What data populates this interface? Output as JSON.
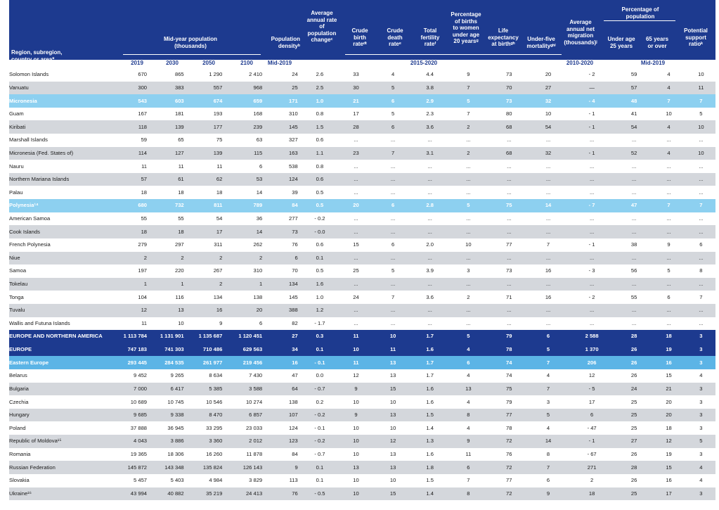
{
  "header": {
    "region": "Region, subregion,\ncountry or area*",
    "midyear": "Mid-year population\n(thousands)",
    "density": "Population\ndensityᵇ",
    "growth": "Average\nannual rate\nof\npopulation\nchangeᶜ",
    "cbr": "Crude\nbirth\nrateᵈᵗ",
    "cdr": "Crude\ndeath\nrateᵉ",
    "tfr": "Total\nfertility\nrateᶠ",
    "births_young": "Percentage\nof births\nto women\nunder age\n20 yearsᵍ",
    "life": "Life\nexpectancy\nat birthᵍʰ",
    "u5": "Under-five\nmortalityᵍʰⁱ",
    "migration": "Average\nannual net\nmigration\n(thousands)ʲ",
    "pct_group": "Percentage of\npopulation",
    "under25": "Under age\n25 years",
    "over65": "65 years\nor over",
    "support": "Potential\nsupport\nratioᵏ",
    "years": {
      "y2019": "2019",
      "y2030": "2030",
      "y2050": "2050",
      "y2100": "2100",
      "mid2019a": "Mid-2019",
      "p2015": "2015-2020",
      "p2010": "2010-2020",
      "mid2019b": "Mid-2019"
    }
  },
  "rows": [
    {
      "type": "country",
      "name": "Solomon Islands",
      "v": [
        "670",
        "865",
        "1 290",
        "2 410",
        "24",
        "2.6",
        "33",
        "4",
        "4.4",
        "9",
        "73",
        "20",
        "- 2",
        "59",
        "4",
        "10"
      ]
    },
    {
      "type": "alt",
      "name": "Vanuatu",
      "v": [
        "300",
        "383",
        "557",
        "968",
        "25",
        "2.5",
        "30",
        "5",
        "3.8",
        "7",
        "70",
        "27",
        "—",
        "57",
        "4",
        "11"
      ]
    },
    {
      "type": "sub",
      "name": "Micronesia",
      "v": [
        "543",
        "603",
        "674",
        "659",
        "171",
        "1.0",
        "21",
        "6",
        "2.9",
        "5",
        "73",
        "32",
        "- 4",
        "48",
        "7",
        "7"
      ]
    },
    {
      "type": "country",
      "name": "Guam",
      "v": [
        "167",
        "181",
        "193",
        "168",
        "310",
        "0.8",
        "17",
        "5",
        "2.3",
        "7",
        "80",
        "10",
        "- 1",
        "41",
        "10",
        "5"
      ]
    },
    {
      "type": "alt",
      "name": "Kiribati",
      "v": [
        "118",
        "139",
        "177",
        "239",
        "145",
        "1.5",
        "28",
        "6",
        "3.6",
        "2",
        "68",
        "54",
        "- 1",
        "54",
        "4",
        "10"
      ]
    },
    {
      "type": "country",
      "name": "Marshall Islands",
      "v": [
        "59",
        "65",
        "75",
        "63",
        "327",
        "0.6",
        "...",
        "...",
        "...",
        "...",
        "...",
        "...",
        "...",
        "...",
        "...",
        "..."
      ]
    },
    {
      "type": "alt",
      "name": "Micronesia (Fed. States of)",
      "v": [
        "114",
        "127",
        "139",
        "115",
        "163",
        "1.1",
        "23",
        "7",
        "3.1",
        "2",
        "68",
        "32",
        "- 1",
        "52",
        "4",
        "10"
      ]
    },
    {
      "type": "country",
      "name": "Nauru",
      "v": [
        "11",
        "11",
        "11",
        "6",
        "538",
        "0.8",
        "...",
        "...",
        "...",
        "...",
        "...",
        "...",
        "...",
        "...",
        "...",
        "..."
      ]
    },
    {
      "type": "alt",
      "name": "Northern Mariana Islands",
      "v": [
        "57",
        "61",
        "62",
        "53",
        "124",
        "0.6",
        "...",
        "...",
        "...",
        "...",
        "...",
        "...",
        "...",
        "...",
        "...",
        "..."
      ]
    },
    {
      "type": "country",
      "name": "Palau",
      "v": [
        "18",
        "18",
        "18",
        "14",
        "39",
        "0.5",
        "...",
        "...",
        "...",
        "...",
        "...",
        "...",
        "...",
        "...",
        "...",
        "..."
      ]
    },
    {
      "type": "sub",
      "name": "Polynesia¹⁴",
      "v": [
        "680",
        "732",
        "811",
        "789",
        "84",
        "0.5",
        "20",
        "6",
        "2.8",
        "5",
        "75",
        "14",
        "- 7",
        "47",
        "7",
        "7"
      ]
    },
    {
      "type": "country",
      "name": "American Samoa",
      "v": [
        "55",
        "55",
        "54",
        "36",
        "277",
        "- 0.2",
        "...",
        "...",
        "...",
        "...",
        "...",
        "...",
        "...",
        "...",
        "...",
        "..."
      ]
    },
    {
      "type": "alt",
      "name": "Cook Islands",
      "v": [
        "18",
        "18",
        "17",
        "14",
        "73",
        "- 0.0",
        "...",
        "...",
        "...",
        "...",
        "...",
        "...",
        "...",
        "...",
        "...",
        "..."
      ]
    },
    {
      "type": "country",
      "name": "French Polynesia",
      "v": [
        "279",
        "297",
        "311",
        "262",
        "76",
        "0.6",
        "15",
        "6",
        "2.0",
        "10",
        "77",
        "7",
        "- 1",
        "38",
        "9",
        "6"
      ]
    },
    {
      "type": "alt",
      "name": "Niue",
      "v": [
        "2",
        "2",
        "2",
        "2",
        "6",
        "0.1",
        "...",
        "...",
        "...",
        "...",
        "...",
        "...",
        "...",
        "...",
        "...",
        "..."
      ]
    },
    {
      "type": "country",
      "name": "Samoa",
      "v": [
        "197",
        "220",
        "267",
        "310",
        "70",
        "0.5",
        "25",
        "5",
        "3.9",
        "3",
        "73",
        "16",
        "- 3",
        "56",
        "5",
        "8"
      ]
    },
    {
      "type": "alt",
      "name": "Tokelau",
      "v": [
        "1",
        "1",
        "2",
        "1",
        "134",
        "1.6",
        "...",
        "...",
        "...",
        "...",
        "...",
        "...",
        "...",
        "...",
        "...",
        "..."
      ]
    },
    {
      "type": "country",
      "name": "Tonga",
      "v": [
        "104",
        "116",
        "134",
        "138",
        "145",
        "1.0",
        "24",
        "7",
        "3.6",
        "2",
        "71",
        "16",
        "- 2",
        "55",
        "6",
        "7"
      ]
    },
    {
      "type": "alt",
      "name": "Tuvalu",
      "v": [
        "12",
        "13",
        "16",
        "20",
        "388",
        "1.2",
        "...",
        "...",
        "...",
        "...",
        "...",
        "...",
        "...",
        "...",
        "...",
        "..."
      ]
    },
    {
      "type": "country",
      "name": "Wallis and Futuna Islands",
      "v": [
        "11",
        "10",
        "9",
        "6",
        "82",
        "- 1.7",
        "...",
        "...",
        "...",
        "...",
        "...",
        "...",
        "...",
        "...",
        "...",
        "..."
      ]
    },
    {
      "type": "regtop",
      "name": "EUROPE AND NORTHERN AMERICA",
      "v": [
        "1 113 784",
        "1 131 901",
        "1 135 687",
        "1 120 451",
        "27",
        "0.3",
        "11",
        "10",
        "1.7",
        "5",
        "79",
        "6",
        "2 588",
        "28",
        "18",
        "3"
      ]
    },
    {
      "type": "major",
      "name": "EUROPE",
      "v": [
        "747 183",
        "741 303",
        "710 486",
        "629 563",
        "34",
        "0.1",
        "10",
        "11",
        "1.6",
        "4",
        "78",
        "5",
        "1 370",
        "26",
        "19",
        "3"
      ]
    },
    {
      "type": "sub2",
      "name": "Eastern Europe",
      "v": [
        "293 445",
        "284 535",
        "261 977",
        "219 456",
        "16",
        "- 0.1",
        "11",
        "13",
        "1.7",
        "6",
        "74",
        "7",
        "206",
        "26",
        "16",
        "3"
      ]
    },
    {
      "type": "country",
      "name": "Belarus",
      "v": [
        "9 452",
        "9 265",
        "8 634",
        "7 430",
        "47",
        "0.0",
        "12",
        "13",
        "1.7",
        "4",
        "74",
        "4",
        "12",
        "26",
        "15",
        "4"
      ]
    },
    {
      "type": "alt",
      "name": "Bulgaria",
      "v": [
        "7 000",
        "6 417",
        "5 385",
        "3 588",
        "64",
        "- 0.7",
        "9",
        "15",
        "1.6",
        "13",
        "75",
        "7",
        "- 5",
        "24",
        "21",
        "3"
      ]
    },
    {
      "type": "country",
      "name": "Czechia",
      "v": [
        "10 689",
        "10 745",
        "10 546",
        "10 274",
        "138",
        "0.2",
        "10",
        "10",
        "1.6",
        "4",
        "79",
        "3",
        "17",
        "25",
        "20",
        "3"
      ]
    },
    {
      "type": "alt",
      "name": "Hungary",
      "v": [
        "9 685",
        "9 338",
        "8 470",
        "6 857",
        "107",
        "- 0.2",
        "9",
        "13",
        "1.5",
        "8",
        "77",
        "5",
        "6",
        "25",
        "20",
        "3"
      ]
    },
    {
      "type": "country",
      "name": "Poland",
      "v": [
        "37 888",
        "36 945",
        "33 295",
        "23 033",
        "124",
        "- 0.1",
        "10",
        "10",
        "1.4",
        "4",
        "78",
        "4",
        "- 47",
        "25",
        "18",
        "3"
      ]
    },
    {
      "type": "alt",
      "name": "Republic of Moldova¹⁵",
      "v": [
        "4 043",
        "3 886",
        "3 360",
        "2 012",
        "123",
        "- 0.2",
        "10",
        "12",
        "1.3",
        "9",
        "72",
        "14",
        "- 1",
        "27",
        "12",
        "5"
      ]
    },
    {
      "type": "country",
      "name": "Romania",
      "v": [
        "19 365",
        "18 306",
        "16 260",
        "11 878",
        "84",
        "- 0.7",
        "10",
        "13",
        "1.6",
        "11",
        "76",
        "8",
        "- 67",
        "26",
        "19",
        "3"
      ]
    },
    {
      "type": "alt",
      "name": "Russian Federation",
      "v": [
        "145 872",
        "143 348",
        "135 824",
        "126 143",
        "9",
        "0.1",
        "13",
        "13",
        "1.8",
        "6",
        "72",
        "7",
        "271",
        "28",
        "15",
        "4"
      ]
    },
    {
      "type": "country",
      "name": "Slovakia",
      "v": [
        "5 457",
        "5 403",
        "4 984",
        "3 829",
        "113",
        "0.1",
        "10",
        "10",
        "1.5",
        "7",
        "77",
        "6",
        "2",
        "26",
        "16",
        "4"
      ]
    },
    {
      "type": "alt",
      "name": "Ukraine¹⁶",
      "v": [
        "43 994",
        "40 882",
        "35 219",
        "24 413",
        "76",
        "- 0.5",
        "10",
        "15",
        "1.4",
        "8",
        "72",
        "9",
        "18",
        "25",
        "17",
        "3"
      ]
    }
  ]
}
